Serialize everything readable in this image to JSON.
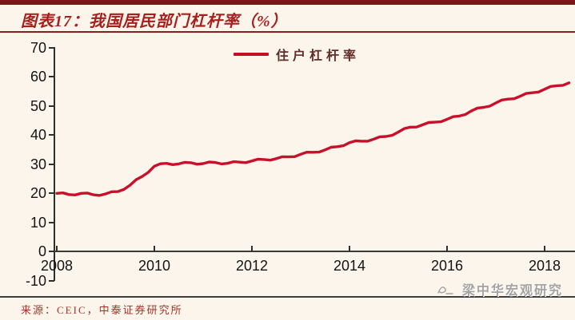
{
  "header": {
    "title": "图表17：我国居民部门杠杆率（%）"
  },
  "legend": {
    "label": "住户杠杆率"
  },
  "footer": {
    "source": "来源：CEIC，中泰证券研究所",
    "watermark": "梁中华宏观研究"
  },
  "colors": {
    "accent_maroon": "#7d1417",
    "title_red": "#a6201e",
    "line_red": "#c9102a",
    "source_red": "#a93226",
    "axis_dark": "#2e2e2e",
    "watermark_gray": "#a3a3a3",
    "background_cream": "#fbf5ec"
  },
  "chart_data": {
    "type": "line",
    "title": "图表17：我国居民部门杠杆率（%）",
    "xlabel": "",
    "ylabel": "",
    "xlim": [
      2008,
      2018.6
    ],
    "ylim": [
      -10,
      70
    ],
    "x_ticks": [
      2008,
      2010,
      2012,
      2014,
      2016,
      2018
    ],
    "y_ticks": [
      70,
      60,
      50,
      40,
      30,
      20,
      10,
      0,
      -10
    ],
    "grid": false,
    "legend_position": "top-center",
    "series": [
      {
        "name": "住户杠杆率",
        "points": [
          [
            2008.0,
            20.0
          ],
          [
            2008.25,
            19.6
          ],
          [
            2008.5,
            20.0
          ],
          [
            2008.75,
            19.5
          ],
          [
            2009.0,
            19.8
          ],
          [
            2009.25,
            20.6
          ],
          [
            2009.5,
            22.8
          ],
          [
            2009.75,
            25.8
          ],
          [
            2010.0,
            29.3
          ],
          [
            2010.25,
            30.3
          ],
          [
            2010.5,
            30.1
          ],
          [
            2010.75,
            30.5
          ],
          [
            2011.0,
            30.2
          ],
          [
            2011.25,
            30.6
          ],
          [
            2011.5,
            30.3
          ],
          [
            2011.75,
            30.7
          ],
          [
            2012.0,
            31.1
          ],
          [
            2012.25,
            31.6
          ],
          [
            2012.5,
            31.9
          ],
          [
            2012.75,
            32.5
          ],
          [
            2013.0,
            33.4
          ],
          [
            2013.25,
            34.1
          ],
          [
            2013.5,
            34.9
          ],
          [
            2013.75,
            36.0
          ],
          [
            2014.0,
            37.4
          ],
          [
            2014.25,
            37.9
          ],
          [
            2014.5,
            38.6
          ],
          [
            2014.75,
            39.5
          ],
          [
            2015.0,
            41.0
          ],
          [
            2015.25,
            42.7
          ],
          [
            2015.5,
            43.5
          ],
          [
            2015.75,
            44.4
          ],
          [
            2016.0,
            45.4
          ],
          [
            2016.25,
            46.5
          ],
          [
            2016.5,
            48.3
          ],
          [
            2016.75,
            49.5
          ],
          [
            2017.0,
            51.0
          ],
          [
            2017.25,
            52.3
          ],
          [
            2017.5,
            53.3
          ],
          [
            2017.75,
            54.5
          ],
          [
            2018.0,
            55.7
          ],
          [
            2018.25,
            56.9
          ],
          [
            2018.5,
            57.9
          ]
        ]
      }
    ]
  }
}
